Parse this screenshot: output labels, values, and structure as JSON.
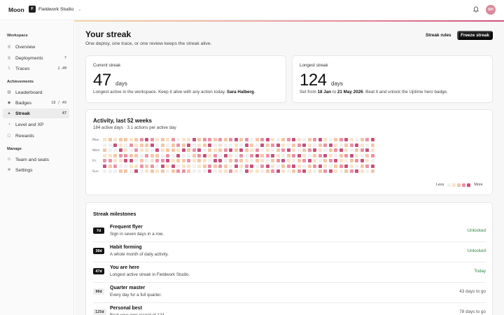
{
  "app": {
    "name": "Moon",
    "org_initial": "F",
    "org_name": "Fieldwork Studio",
    "user_initials": "SH"
  },
  "icons": {
    "bell": "bell-icon",
    "chevron": "chevron-down-icon"
  },
  "sidebar": {
    "groups": [
      {
        "label": "Workspace",
        "items": [
          {
            "label": "Overview",
            "icon": "circle-icon",
            "count": ""
          },
          {
            "label": "Deployments",
            "icon": "circle-icon",
            "count": "7"
          },
          {
            "label": "Traces",
            "icon": "trace-icon",
            "count": "2.4M"
          }
        ]
      },
      {
        "label": "Achievements",
        "items": [
          {
            "label": "Leaderboard",
            "icon": "chart-icon",
            "count": ""
          },
          {
            "label": "Badges",
            "icon": "badge-icon",
            "count": "18 / 40"
          },
          {
            "label": "Streak",
            "icon": "flame-icon",
            "count": "47",
            "active": true
          },
          {
            "label": "Level and XP",
            "icon": "level-icon",
            "count": ""
          },
          {
            "label": "Rewards",
            "icon": "gift-icon",
            "count": ""
          }
        ]
      },
      {
        "label": "Manage",
        "items": [
          {
            "label": "Team and seats",
            "icon": "team-icon",
            "count": ""
          },
          {
            "label": "Settings",
            "icon": "gear-icon",
            "count": ""
          }
        ]
      }
    ]
  },
  "header": {
    "title": "Your streak",
    "subtitle": "One deploy, one trace, or one review keeps the streak alive.",
    "rules_label": "Streak rules",
    "freeze_label": "Freeze streak"
  },
  "current": {
    "label": "Current streak",
    "value": "47",
    "unit": "days",
    "note_prefix": "Longest active in the workspace. Keep it alive with any action today.",
    "note_name": "Sara Halberg",
    "note_suffix": "."
  },
  "longest": {
    "label": "Longest streak",
    "value": "124",
    "unit": "days",
    "note_prefix": "Set from",
    "from": "18 Jan",
    "to_word": "to",
    "to": "21 May 2026",
    "note_suffix": ". Beat it and unlock the Uptime hero badge."
  },
  "activity": {
    "title": "Activity, last 52 weeks",
    "subtitle": "184 active days · 3.1 actions per active day",
    "day_labels": [
      "Mon",
      "Wed",
      "Fri",
      "Sun"
    ],
    "legend_less": "Less",
    "legend_more": "More",
    "colors": [
      "#f0f0f0",
      "#f9e3c6",
      "#f4c6a5",
      "#ea92a6",
      "#c9507a"
    ],
    "weeks": 52,
    "levels": "1021340200132014021302143102201340213024102132014321023042130213402132104230122103421023410322014203142031240213142031240321002143210320412034210342013420312043120340213041203412034120432103420134021304120342013402130421304213042130421304213042130421304213042130421304213042130421304213042130421304213042130421304213042130421304213042130421304213042130421304213042130421304213042130421304213042130421304213042130421304213042130421304213042130421304213042130421304213042130421304213042130421304213042130421304213042130421304213"
  },
  "milestones": {
    "title": "Streak milestones",
    "items": [
      {
        "badge": "7d",
        "name": "Frequent flyer",
        "desc": "Sign in seven days in a row.",
        "status": "Unlocked",
        "state": "ok",
        "dark": true
      },
      {
        "badge": "30d",
        "name": "Habit forming",
        "desc": "A whole month of daily activity.",
        "status": "Unlocked",
        "state": "ok",
        "dark": true
      },
      {
        "badge": "47d",
        "name": "You are here",
        "desc": "Longest active streak in Fieldwork Studio.",
        "status": "Today",
        "state": "ok",
        "dark": true
      },
      {
        "badge": "90d",
        "name": "Quarter master",
        "desc": "Every day for a full quarter.",
        "status": "43 days to go",
        "state": "pending",
        "dark": false
      },
      {
        "badge": "125d",
        "name": "Personal best",
        "desc": "Beat your own record of 124.",
        "status": "78 days to go",
        "state": "pending",
        "dark": false
      }
    ]
  }
}
